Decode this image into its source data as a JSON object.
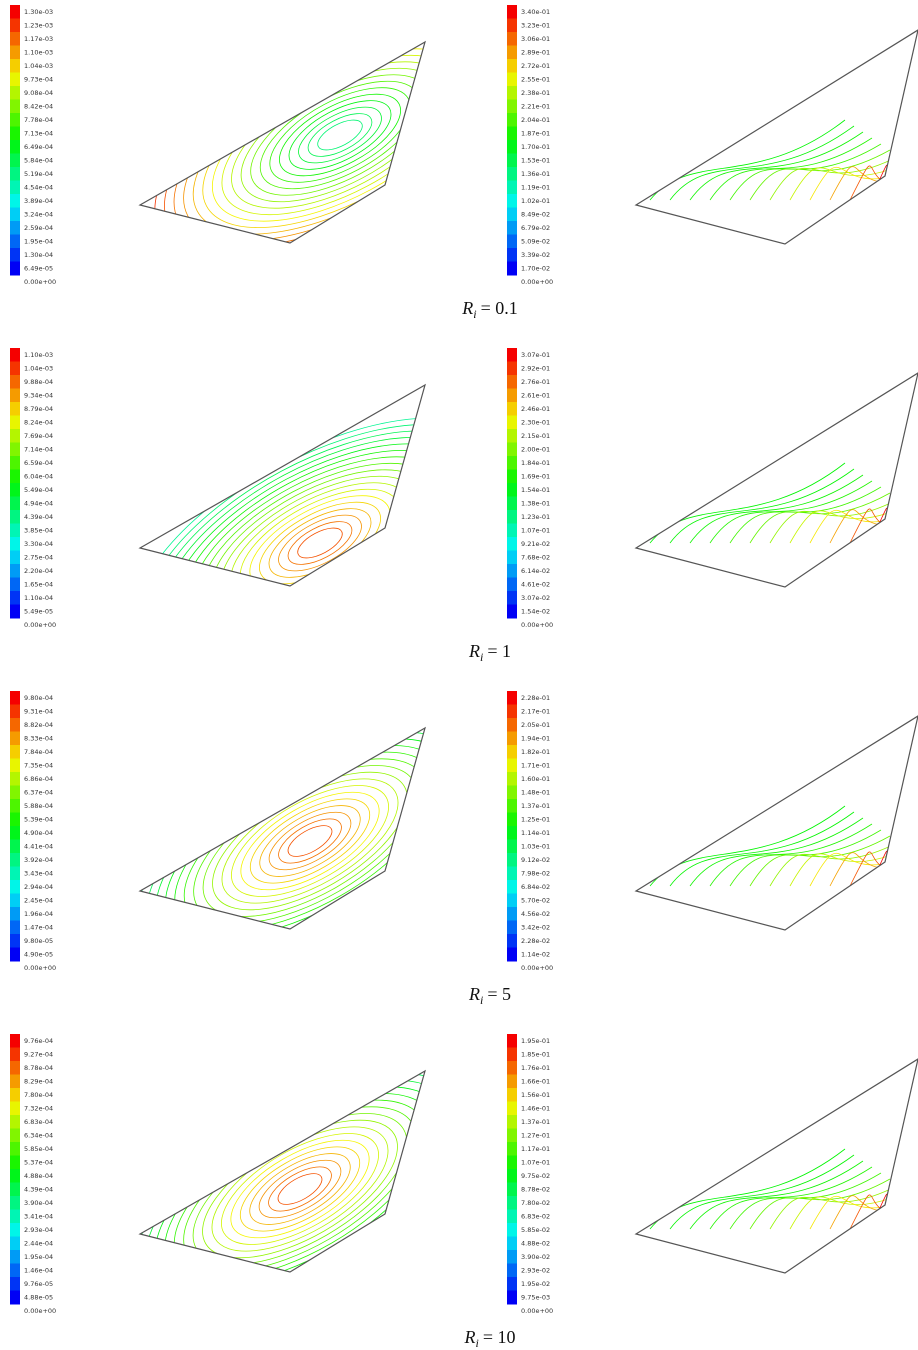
{
  "rows": [
    {
      "left_colorbar": [
        "1.30e-03",
        "1.23e-03",
        "1.17e-03",
        "1.10e-03",
        "1.04e-03",
        "9.73e-04",
        "9.08e-04",
        "8.42e-04",
        "7.78e-04",
        "7.13e-04",
        "6.49e-04",
        "5.84e-04",
        "5.19e-04",
        "4.54e-04",
        "3.89e-04",
        "3.24e-04",
        "2.59e-04",
        "1.95e-04",
        "1.30e-04",
        "6.49e-05",
        "0.00e+00"
      ],
      "right_colorbar": [
        "3.40e-01",
        "3.23e-01",
        "3.06e-01",
        "2.89e-01",
        "2.72e-01",
        "2.55e-01",
        "2.38e-01",
        "2.21e-01",
        "2.04e-01",
        "1.87e-01",
        "1.70e-01",
        "1.53e-01",
        "1.36e-01",
        "1.19e-01",
        "1.02e-01",
        "8.49e-02",
        "6.79e-02",
        "5.09e-02",
        "3.39e-02",
        "1.70e-02",
        "0.00e+00"
      ],
      "caption": {
        "symbol": "R",
        "subscript": "i",
        "value": "= 0.1"
      }
    },
    {
      "left_colorbar": [
        "1.10e-03",
        "1.04e-03",
        "9.88e-04",
        "9.34e-04",
        "8.79e-04",
        "8.24e-04",
        "7.69e-04",
        "7.14e-04",
        "6.59e-04",
        "6.04e-04",
        "5.49e-04",
        "4.94e-04",
        "4.39e-04",
        "3.85e-04",
        "3.30e-04",
        "2.75e-04",
        "2.20e-04",
        "1.65e-04",
        "1.10e-04",
        "5.49e-05",
        "0.00e+00"
      ],
      "right_colorbar": [
        "3.07e-01",
        "2.92e-01",
        "2.76e-01",
        "2.61e-01",
        "2.46e-01",
        "2.30e-01",
        "2.15e-01",
        "2.00e-01",
        "1.84e-01",
        "1.69e-01",
        "1.54e-01",
        "1.38e-01",
        "1.23e-01",
        "1.07e-01",
        "9.21e-02",
        "7.68e-02",
        "6.14e-02",
        "4.61e-02",
        "3.07e-02",
        "1.54e-02",
        "0.00e+00"
      ],
      "caption": {
        "symbol": "R",
        "subscript": "i",
        "value": "= 1"
      }
    },
    {
      "left_colorbar": [
        "9.80e-04",
        "9.31e-04",
        "8.82e-04",
        "8.33e-04",
        "7.84e-04",
        "7.35e-04",
        "6.86e-04",
        "6.37e-04",
        "5.88e-04",
        "5.39e-04",
        "4.90e-04",
        "4.41e-04",
        "3.92e-04",
        "3.43e-04",
        "2.94e-04",
        "2.45e-04",
        "1.96e-04",
        "1.47e-04",
        "9.80e-05",
        "4.90e-05",
        "0.00e+00"
      ],
      "right_colorbar": [
        "2.28e-01",
        "2.17e-01",
        "2.05e-01",
        "1.94e-01",
        "1.82e-01",
        "1.71e-01",
        "1.60e-01",
        "1.48e-01",
        "1.37e-01",
        "1.25e-01",
        "1.14e-01",
        "1.03e-01",
        "9.12e-02",
        "7.98e-02",
        "6.84e-02",
        "5.70e-02",
        "4.56e-02",
        "3.42e-02",
        "2.28e-02",
        "1.14e-02",
        "0.00e+00"
      ],
      "caption": {
        "symbol": "R",
        "subscript": "i",
        "value": "= 5"
      }
    },
    {
      "left_colorbar": [
        "9.76e-04",
        "9.27e-04",
        "8.78e-04",
        "8.29e-04",
        "7.80e-04",
        "7.32e-04",
        "6.83e-04",
        "6.34e-04",
        "5.85e-04",
        "5.37e-04",
        "4.88e-04",
        "4.39e-04",
        "3.90e-04",
        "3.41e-04",
        "2.93e-04",
        "2.44e-04",
        "1.95e-04",
        "1.46e-04",
        "9.76e-05",
        "4.88e-05",
        "0.00e+00"
      ],
      "right_colorbar": [
        "1.95e-01",
        "1.85e-01",
        "1.76e-01",
        "1.66e-01",
        "1.56e-01",
        "1.46e-01",
        "1.37e-01",
        "1.27e-01",
        "1.17e-01",
        "1.07e-01",
        "9.75e-02",
        "8.78e-02",
        "7.80e-02",
        "6.83e-02",
        "5.85e-02",
        "4.88e-02",
        "3.90e-02",
        "2.93e-02",
        "1.95e-02",
        "9.75e-03",
        "0.00e+00"
      ],
      "caption": {
        "symbol": "R",
        "subscript": "i",
        "value": "= 10"
      }
    }
  ]
}
